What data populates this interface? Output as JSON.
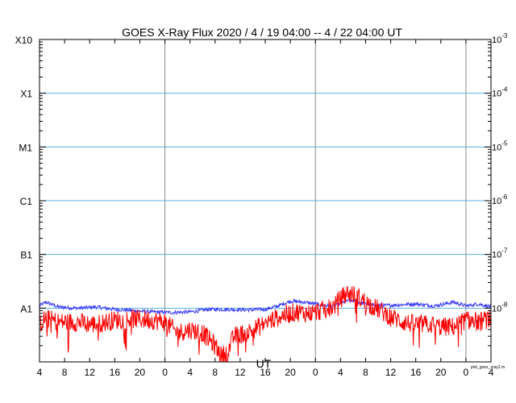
{
  "chart_data": {
    "type": "line",
    "title": "GOES X-Ray Flux   2020 / 4 / 19   04:00 --  4 / 22   04:00   UT",
    "xlabel": "UT",
    "footnote": "plot_goes_xray2.m",
    "x_unit": "hours since 2020-04-19 04:00 UT",
    "xlim": [
      0,
      72
    ],
    "x_ticks": [
      0,
      4,
      8,
      12,
      16,
      20,
      24,
      28,
      32,
      36,
      40,
      44,
      48,
      52,
      56,
      60,
      64,
      68,
      72
    ],
    "x_tick_labels": [
      "4",
      "8",
      "12",
      "16",
      "20",
      "0",
      "4",
      "8",
      "12",
      "16",
      "20",
      "0",
      "4",
      "8",
      "12",
      "16",
      "20",
      "0",
      "4"
    ],
    "day_boundaries": [
      20,
      44,
      68
    ],
    "y_scale": "log",
    "ylim": [
      1e-09,
      0.001
    ],
    "flare_class_ticks": [
      {
        "label": "X10",
        "value": 0.001
      },
      {
        "label": "X1",
        "value": 0.0001
      },
      {
        "label": "M1",
        "value": 1e-05
      },
      {
        "label": "C1",
        "value": 1e-06
      },
      {
        "label": "B1",
        "value": 1e-07
      },
      {
        "label": "A1",
        "value": 1e-08
      }
    ],
    "right_ticks": [
      {
        "base": "10",
        "exp": "-3",
        "value": 0.001
      },
      {
        "base": "10",
        "exp": "-4",
        "value": 0.0001
      },
      {
        "base": "10",
        "exp": "-5",
        "value": 1e-05
      },
      {
        "base": "10",
        "exp": "-6",
        "value": 1e-06
      },
      {
        "base": "10",
        "exp": "-7",
        "value": 1e-07
      },
      {
        "base": "10",
        "exp": "-8",
        "value": 1e-08
      }
    ],
    "grid_lines": [
      0.0001,
      1e-05,
      1e-06,
      1e-07,
      1e-08
    ],
    "grid_color": "#5ab4e6",
    "series": [
      {
        "color": "#3a3aff",
        "x": [
          0,
          1,
          3,
          6,
          9,
          12,
          15,
          18,
          21,
          24,
          27,
          30,
          33,
          36,
          38,
          40,
          42,
          44,
          46,
          47,
          48,
          49,
          50,
          52,
          54,
          57,
          60,
          63,
          66,
          68,
          70,
          72
        ],
        "values": [
          1.1e-08,
          1.3e-08,
          1.05e-08,
          1e-08,
          1.05e-08,
          9.5e-09,
          9e-09,
          8.5e-09,
          8.3e-09,
          8.5e-09,
          9.5e-09,
          9.5e-09,
          9.3e-09,
          9.5e-09,
          1.1e-08,
          1.35e-08,
          1.3e-08,
          1.2e-08,
          1.1e-08,
          1.1e-08,
          1.2e-08,
          1.35e-08,
          1.4e-08,
          1.2e-08,
          1.1e-08,
          1.15e-08,
          1.2e-08,
          1.1e-08,
          1.3e-08,
          1.1e-08,
          1.2e-08,
          1.05e-08
        ]
      },
      {
        "color": "#ff0000",
        "x": [
          0,
          1,
          3,
          6,
          9,
          12,
          15,
          18,
          20,
          22,
          24,
          26,
          28,
          29,
          30,
          31,
          33,
          35,
          37,
          39,
          41,
          43,
          45,
          47,
          48,
          49,
          50,
          51,
          52,
          53,
          54,
          56,
          58,
          60,
          62,
          64,
          66,
          68,
          70,
          72
        ],
        "values": [
          5e-09,
          6.5e-09,
          5.5e-09,
          5.5e-09,
          5e-09,
          6e-09,
          6.3e-09,
          6e-09,
          5.5e-09,
          3.5e-09,
          4e-09,
          3.5e-09,
          2e-09,
          1.3e-09,
          1.5e-09,
          3e-09,
          3.5e-09,
          4.5e-09,
          6e-09,
          7.5e-09,
          8.5e-09,
          8e-09,
          9e-09,
          1.1e-08,
          1.5e-08,
          1.9e-08,
          1.8e-08,
          1.55e-08,
          1.3e-08,
          1.1e-08,
          9.5e-09,
          7e-09,
          5.5e-09,
          5e-09,
          5e-09,
          4.5e-09,
          4.5e-09,
          6e-09,
          5.5e-09,
          6.5e-09
        ]
      }
    ]
  }
}
